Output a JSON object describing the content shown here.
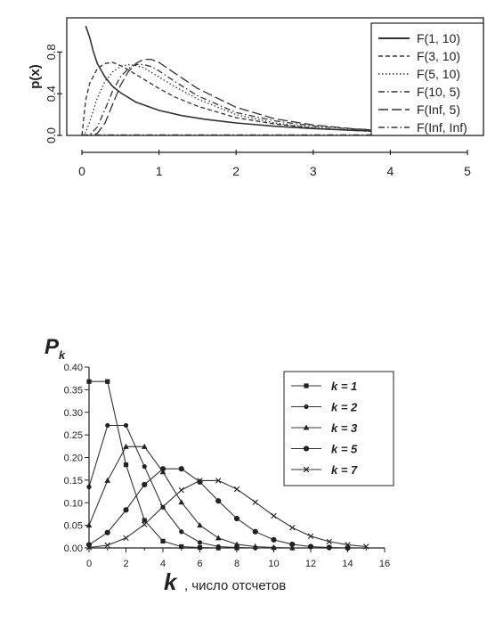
{
  "chart_data": [
    {
      "type": "line",
      "ylabel": "p(x)",
      "xlim": [
        0,
        5.3
      ],
      "ylim": [
        0,
        1.0
      ],
      "x_ticks": [
        "0",
        "1",
        "2",
        "3",
        "4",
        "5"
      ],
      "y_ticks": [
        "0.0",
        "0.4",
        "0.8"
      ],
      "grid": false,
      "legend": "top-right",
      "series": [
        {
          "name": "F(1, 10)",
          "dash": "solid",
          "x": [
            0.05,
            0.1,
            0.15,
            0.2,
            0.3,
            0.4,
            0.5,
            0.7,
            1.0,
            1.3,
            1.6,
            2.0,
            2.5,
            3.0,
            3.5,
            4.0,
            4.5,
            5.0,
            5.3
          ],
          "y": [
            1.05,
            0.94,
            0.8,
            0.69,
            0.56,
            0.47,
            0.41,
            0.32,
            0.24,
            0.19,
            0.155,
            0.12,
            0.088,
            0.066,
            0.05,
            0.038,
            0.03,
            0.024,
            0.021
          ]
        },
        {
          "name": "F(3, 10)",
          "dash": "short-dash",
          "x": [
            0,
            0.05,
            0.1,
            0.2,
            0.3,
            0.4,
            0.5,
            0.6,
            0.8,
            1.0,
            1.2,
            1.5,
            2.0,
            2.5,
            3.0,
            3.5,
            4.0,
            4.5,
            5.0,
            5.3
          ],
          "y": [
            0,
            0.34,
            0.5,
            0.64,
            0.69,
            0.7,
            0.67,
            0.63,
            0.54,
            0.45,
            0.37,
            0.28,
            0.17,
            0.11,
            0.07,
            0.048,
            0.033,
            0.023,
            0.016,
            0.013
          ]
        },
        {
          "name": "F(5, 10)",
          "dash": "dotted",
          "x": [
            0,
            0.05,
            0.1,
            0.2,
            0.3,
            0.4,
            0.5,
            0.6,
            0.7,
            0.8,
            1.0,
            1.2,
            1.5,
            2.0,
            2.5,
            3.0,
            3.5,
            4.0,
            4.5,
            5.0,
            5.3
          ],
          "y": [
            0,
            0.03,
            0.13,
            0.36,
            0.52,
            0.61,
            0.66,
            0.68,
            0.67,
            0.65,
            0.56,
            0.47,
            0.35,
            0.2,
            0.12,
            0.075,
            0.048,
            0.031,
            0.021,
            0.014,
            0.011
          ]
        },
        {
          "name": "F(10, 5)",
          "dash": "dash-dot",
          "x": [
            0,
            0.1,
            0.2,
            0.3,
            0.4,
            0.5,
            0.6,
            0.7,
            0.8,
            0.9,
            1.0,
            1.2,
            1.5,
            2.0,
            2.5,
            3.0,
            3.5,
            4.0,
            4.5,
            5.0,
            5.3
          ],
          "y": [
            0,
            0.005,
            0.08,
            0.25,
            0.43,
            0.56,
            0.64,
            0.68,
            0.68,
            0.66,
            0.62,
            0.52,
            0.38,
            0.22,
            0.14,
            0.09,
            0.062,
            0.043,
            0.031,
            0.023,
            0.019
          ]
        },
        {
          "name": "F(Inf, 5)",
          "dash": "long-dash",
          "x": [
            0,
            0.1,
            0.2,
            0.3,
            0.4,
            0.5,
            0.6,
            0.7,
            0.8,
            0.9,
            1.0,
            1.2,
            1.5,
            2.0,
            2.5,
            3.0,
            3.5,
            4.0,
            4.5,
            5.0,
            5.3
          ],
          "y": [
            0,
            0.001,
            0.02,
            0.12,
            0.3,
            0.48,
            0.61,
            0.69,
            0.73,
            0.73,
            0.7,
            0.6,
            0.45,
            0.27,
            0.16,
            0.1,
            0.065,
            0.044,
            0.031,
            0.022,
            0.018
          ]
        },
        {
          "name": "F(Inf, Inf)",
          "dash": "dash-dot",
          "x": [
            0,
            5.3
          ],
          "y": [
            0.005,
            0.005
          ]
        }
      ]
    },
    {
      "type": "line",
      "ylabel": "P",
      "ylabel_sub": "k",
      "xlabel": "k",
      "xlabel_suffix": ", число отсчетов",
      "xlim": [
        0,
        16
      ],
      "ylim": [
        0,
        0.4
      ],
      "x_ticks": [
        "0",
        "2",
        "4",
        "6",
        "8",
        "10",
        "12",
        "14",
        "16"
      ],
      "y_ticks": [
        "0.00",
        "0.05",
        "0.10",
        "0.15",
        "0.20",
        "0.25",
        "0.30",
        "0.35",
        "0.40"
      ],
      "grid": false,
      "legend": "top-right",
      "series": [
        {
          "name": "k = 1",
          "marker": "square",
          "x": [
            0,
            1,
            2,
            3,
            4,
            5,
            6,
            7,
            8
          ],
          "y": [
            0.368,
            0.368,
            0.184,
            0.061,
            0.015,
            0.003,
            0.001,
            0,
            0
          ]
        },
        {
          "name": "k = 2",
          "marker": "dot",
          "x": [
            0,
            1,
            2,
            3,
            4,
            5,
            6,
            7,
            8,
            9,
            10
          ],
          "y": [
            0.135,
            0.271,
            0.271,
            0.18,
            0.09,
            0.036,
            0.012,
            0.003,
            0.001,
            0,
            0
          ]
        },
        {
          "name": "k = 3",
          "marker": "triangle",
          "x": [
            0,
            1,
            2,
            3,
            4,
            5,
            6,
            7,
            8,
            9,
            10,
            11
          ],
          "y": [
            0.05,
            0.149,
            0.224,
            0.224,
            0.168,
            0.101,
            0.05,
            0.022,
            0.008,
            0.003,
            0.001,
            0
          ]
        },
        {
          "name": "k = 5",
          "marker": "diamond",
          "x": [
            0,
            1,
            2,
            3,
            4,
            5,
            6,
            7,
            8,
            9,
            10,
            11,
            12,
            13,
            14
          ],
          "y": [
            0.007,
            0.034,
            0.084,
            0.14,
            0.175,
            0.175,
            0.146,
            0.104,
            0.065,
            0.036,
            0.018,
            0.008,
            0.003,
            0.001,
            0
          ]
        },
        {
          "name": "k = 7",
          "marker": "cross",
          "x": [
            0,
            1,
            2,
            3,
            4,
            5,
            6,
            7,
            8,
            9,
            10,
            11,
            12,
            13,
            14,
            15
          ],
          "y": [
            0.001,
            0.006,
            0.022,
            0.052,
            0.091,
            0.128,
            0.149,
            0.149,
            0.13,
            0.101,
            0.071,
            0.045,
            0.026,
            0.014,
            0.007,
            0.003
          ]
        }
      ]
    }
  ]
}
